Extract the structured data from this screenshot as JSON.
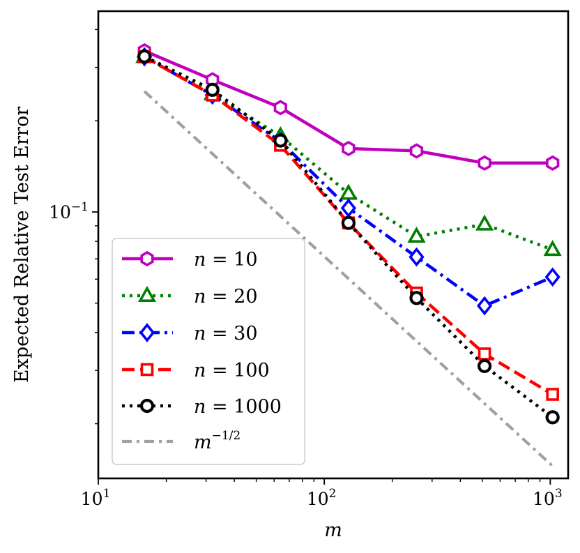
{
  "chart_data": {
    "type": "line",
    "xscale": "log",
    "yscale": "log",
    "xlabel": "m",
    "ylabel": "Expected Relative Test Error",
    "xlim": [
      10,
      1200
    ],
    "ylim": [
      0.0132,
      0.46
    ],
    "x_ticks": [
      {
        "value": 10,
        "base": "10",
        "exp": "1"
      },
      {
        "value": 100,
        "base": "10",
        "exp": "2"
      },
      {
        "value": 1000,
        "base": "10",
        "exp": "3"
      }
    ],
    "y_ticks": [
      {
        "value": 0.1,
        "base": "10",
        "exp": "−1"
      }
    ],
    "grid": false,
    "legend_position": "lower-left",
    "x": [
      16,
      32,
      64,
      128,
      256,
      512,
      1024
    ],
    "series": [
      {
        "name": "n = 10",
        "label_var": "n",
        "label_rest": " = 10",
        "color": "#bf00bf",
        "dash": "solid",
        "marker": "hexagon",
        "values": [
          0.34,
          0.273,
          0.221,
          0.162,
          0.159,
          0.145,
          0.145
        ]
      },
      {
        "name": "n = 20",
        "label_var": "n",
        "label_rest": " = 20",
        "color": "#008000",
        "dash": "dotted",
        "marker": "triangle",
        "values": [
          0.325,
          0.245,
          0.178,
          0.115,
          0.083,
          0.091,
          0.075
        ]
      },
      {
        "name": "n = 30",
        "label_var": "n",
        "label_rest": " = 30",
        "color": "#0000ff",
        "dash": "dashdot",
        "marker": "diamond",
        "values": [
          0.325,
          0.243,
          0.171,
          0.103,
          0.071,
          0.049,
          0.061
        ]
      },
      {
        "name": "n = 100",
        "label_var": "n",
        "label_rest": " = 100",
        "color": "#ff0000",
        "dash": "dashed",
        "marker": "square",
        "values": [
          0.325,
          0.243,
          0.166,
          0.092,
          0.054,
          0.034,
          0.025
        ]
      },
      {
        "name": "n = 1000",
        "label_var": "n",
        "label_rest": " = 1000",
        "color": "#000000",
        "dash": "dotted",
        "marker": "circle",
        "values": [
          0.326,
          0.253,
          0.172,
          0.092,
          0.052,
          0.031,
          0.021
        ]
      },
      {
        "name": "m^{-1/2}",
        "label_var": "m",
        "label_sup": "−1/2",
        "color": "#a0a0a0",
        "dash": "dashdot",
        "marker": "none",
        "x": [
          16,
          1024
        ],
        "values": [
          0.25,
          0.0145
        ]
      }
    ]
  }
}
